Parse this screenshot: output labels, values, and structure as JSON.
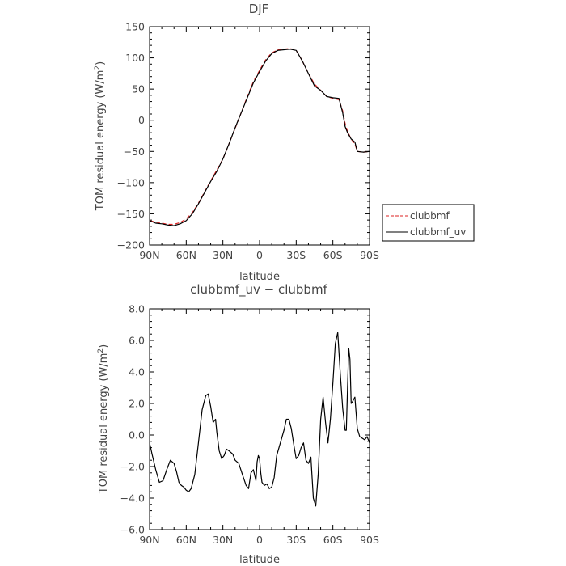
{
  "chart_data": [
    {
      "type": "line",
      "title": "DJF",
      "xlabel": "latitude",
      "ylabel": "TOM residual energy (W/m²)",
      "ylabel_base": "TOM residual energy (W/m",
      "ylabel_sup": "2",
      "ylabel_end": ")",
      "xlim": [
        90,
        -90
      ],
      "ylim": [
        -200,
        150
      ],
      "xticks": [
        90,
        60,
        30,
        0,
        -30,
        -60,
        -90
      ],
      "xtick_labels": [
        "90N",
        "60N",
        "30N",
        "0",
        "30S",
        "60S",
        "90S"
      ],
      "yticks": [
        -200,
        -150,
        -100,
        -50,
        0,
        50,
        100,
        150
      ],
      "ytick_labels": [
        "−200",
        "−150",
        "−100",
        "−50",
        "0",
        "50",
        "100",
        "150"
      ],
      "legend_position": "right",
      "series": [
        {
          "name": "clubbmf",
          "color": "#dd2222",
          "style": "dashed",
          "x": [
            90,
            85,
            80,
            75,
            70,
            65,
            60,
            55,
            50,
            45,
            40,
            35,
            30,
            25,
            20,
            15,
            10,
            5,
            0,
            -5,
            -10,
            -15,
            -20,
            -25,
            -30,
            -35,
            -40,
            -45,
            -50,
            -55,
            -60,
            -65,
            -68,
            -70,
            -72,
            -75,
            -78,
            -80,
            -85,
            -90
          ],
          "y": [
            -161,
            -163,
            -165,
            -167,
            -167,
            -164,
            -158,
            -148,
            -133,
            -115,
            -97,
            -80,
            -62,
            -38,
            -13,
            12,
            38,
            62,
            80,
            97,
            108,
            113,
            114,
            115,
            112,
            95,
            75,
            58,
            48,
            38,
            35,
            33,
            15,
            -5,
            -18,
            -30,
            -38,
            -50,
            -51,
            -50
          ]
        },
        {
          "name": "clubbmf_uv",
          "color": "#000000",
          "style": "solid",
          "x": [
            90,
            85,
            80,
            75,
            70,
            65,
            60,
            55,
            50,
            45,
            40,
            35,
            30,
            25,
            20,
            15,
            10,
            5,
            0,
            -5,
            -10,
            -15,
            -20,
            -25,
            -30,
            -35,
            -40,
            -45,
            -50,
            -55,
            -60,
            -65,
            -68,
            -70,
            -72,
            -75,
            -78,
            -80,
            -85,
            -90
          ],
          "y": [
            -161,
            -165,
            -166,
            -168,
            -169,
            -166,
            -161,
            -150,
            -134,
            -116,
            -98,
            -82,
            -62,
            -38,
            -12,
            12,
            36,
            60,
            78,
            95,
            107,
            112,
            113,
            114,
            112,
            95,
            75,
            55,
            48,
            38,
            36,
            35,
            12,
            -10,
            -20,
            -30,
            -35,
            -50,
            -51,
            -50
          ]
        }
      ]
    },
    {
      "type": "line",
      "title": "clubbmf_uv − clubbmf",
      "xlabel": "latitude",
      "ylabel": "TOM residual energy (W/m²)",
      "ylabel_base": "TOM residual energy (W/m",
      "ylabel_sup": "2",
      "ylabel_end": ")",
      "xlim": [
        90,
        -90
      ],
      "ylim": [
        -6,
        8
      ],
      "xticks": [
        90,
        60,
        30,
        0,
        -30,
        -60,
        -90
      ],
      "xtick_labels": [
        "90N",
        "60N",
        "30N",
        "0",
        "30S",
        "60S",
        "90S"
      ],
      "yticks": [
        -6,
        -4,
        -2,
        0,
        2,
        4,
        6,
        8
      ],
      "ytick_labels": [
        "−6.0",
        "−4.0",
        "−2.0",
        "0.0",
        "2.0",
        "4.0",
        "6.0",
        "8.0"
      ],
      "series": [
        {
          "color": "#000000",
          "style": "solid",
          "x": [
            90,
            88,
            85,
            82,
            79,
            76,
            73,
            70,
            68,
            66,
            64,
            62,
            60,
            58,
            56,
            53,
            50,
            47,
            44,
            42,
            40,
            38,
            36,
            35,
            33,
            31,
            29,
            27,
            25,
            22,
            20,
            17,
            14,
            11,
            9,
            7,
            5,
            3,
            2,
            1,
            0,
            -1,
            -2,
            -4,
            -6,
            -8,
            -10,
            -12,
            -14,
            -17,
            -20,
            -22,
            -24,
            -26,
            -28,
            -30,
            -32,
            -34,
            -36,
            -38,
            -40,
            -42,
            -44,
            -46,
            -48,
            -50,
            -52,
            -54,
            -56,
            -58,
            -60,
            -62,
            -64,
            -66,
            -68,
            -70,
            -71,
            -72,
            -73,
            -74,
            -75,
            -76,
            -78,
            -80,
            -82,
            -84,
            -86,
            -88,
            -90
          ],
          "y": [
            -0.5,
            -1.2,
            -2.2,
            -3.0,
            -2.9,
            -2.2,
            -1.6,
            -1.8,
            -2.3,
            -3.0,
            -3.2,
            -3.3,
            -3.5,
            -3.6,
            -3.4,
            -2.5,
            -0.5,
            1.6,
            2.5,
            2.6,
            1.8,
            0.8,
            1.0,
            0.2,
            -1.0,
            -1.5,
            -1.3,
            -0.9,
            -1.0,
            -1.2,
            -1.6,
            -1.8,
            -2.5,
            -3.2,
            -3.4,
            -2.4,
            -2.2,
            -2.9,
            -1.7,
            -1.3,
            -1.5,
            -2.4,
            -3.0,
            -3.2,
            -3.1,
            -3.4,
            -3.3,
            -2.7,
            -1.3,
            -0.5,
            0.3,
            1.0,
            1.0,
            0.4,
            -0.6,
            -1.5,
            -1.3,
            -0.8,
            -0.5,
            -1.6,
            -1.8,
            -1.4,
            -4.0,
            -4.5,
            -2.5,
            1.0,
            2.4,
            0.8,
            -0.5,
            1.0,
            3.3,
            5.8,
            6.5,
            4.0,
            1.7,
            0.3,
            0.3,
            3.0,
            5.5,
            4.8,
            2.0,
            2.1,
            2.4,
            0.4,
            -0.1,
            -0.2,
            -0.3,
            -0.1,
            -0.5
          ]
        }
      ]
    }
  ],
  "legend": {
    "items": [
      {
        "label": "clubbmf",
        "color": "#dd2222",
        "style": "dashed"
      },
      {
        "label": "clubbmf_uv",
        "color": "#000000",
        "style": "solid"
      }
    ]
  }
}
